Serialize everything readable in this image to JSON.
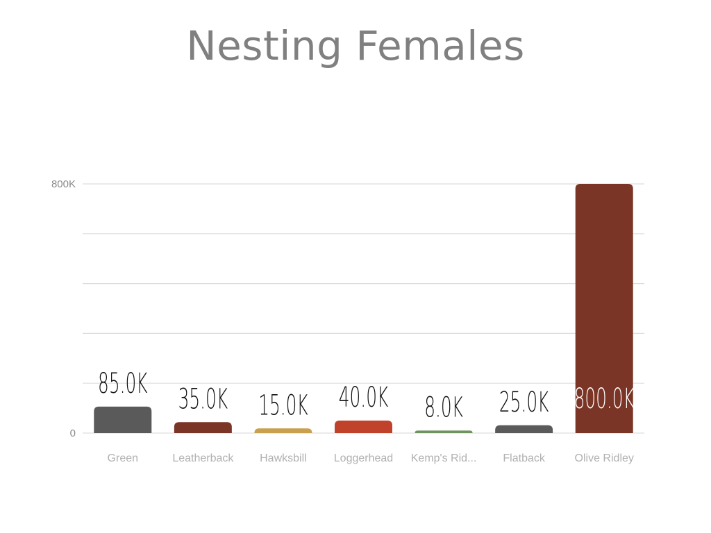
{
  "chart_data": {
    "type": "bar",
    "title": "Nesting Females",
    "xlabel": "",
    "ylabel": "",
    "categories": [
      "Green",
      "Leatherback",
      "Hawksbill",
      "Loggerhead",
      "Kemp's Rid...",
      "Flatback",
      "Olive Ridley"
    ],
    "values": [
      85000,
      35000,
      15000,
      40000,
      8000,
      25000,
      800000
    ],
    "data_labels": [
      "85.0K",
      "35.0K",
      "15.0K",
      "40.0K",
      "8.0K",
      "25.0K",
      "800.0K"
    ],
    "bar_colors": [
      "#5a5a5a",
      "#7a3526",
      "#c9a04e",
      "#c0422a",
      "#6e9460",
      "#5a5a5a",
      "#7a3526"
    ],
    "label_colors": [
      "#111111",
      "#111111",
      "#111111",
      "#111111",
      "#111111",
      "#111111",
      "#ffffff"
    ],
    "ylim": [
      0,
      800000
    ],
    "yticks": [
      0,
      800000
    ],
    "ytick_labels": [
      "0",
      "800K"
    ],
    "grid_values": [
      0,
      160000,
      320000,
      480000,
      640000,
      800000
    ],
    "grid": true,
    "legend": "none"
  }
}
